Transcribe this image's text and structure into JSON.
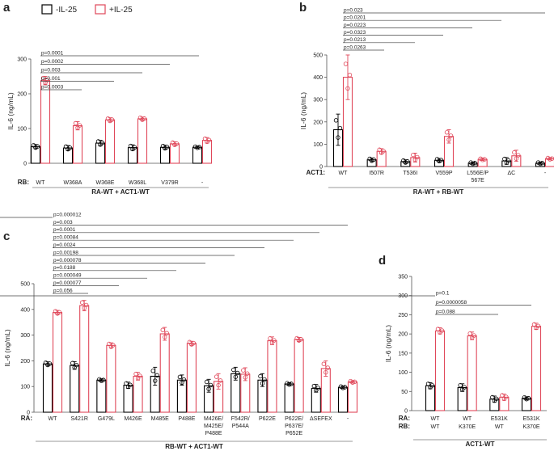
{
  "legend": {
    "items": [
      {
        "label": "-IL-25",
        "color": "#000000"
      },
      {
        "label": "+IL-25",
        "color": "#e0485a"
      }
    ],
    "position": "top-left"
  },
  "chart_data": [
    {
      "panel_label": "a",
      "type": "bar",
      "ylabel": "IL-6 (ng/mL)",
      "ylim": [
        0,
        300
      ],
      "yticks": [
        "0",
        "100",
        "200",
        "300"
      ],
      "row_labels": [
        "RB:"
      ],
      "categories": [
        [
          "WT"
        ],
        [
          "W368A"
        ],
        [
          "W368E"
        ],
        [
          "W368L"
        ],
        [
          "V379R"
        ],
        [
          "-"
        ]
      ],
      "series": [
        {
          "legend_index": 0,
          "values": [
            48,
            44,
            58,
            45,
            46,
            46
          ],
          "errors": [
            6,
            7,
            8,
            8,
            6,
            3
          ]
        },
        {
          "legend_index": 1,
          "values": [
            238,
            108,
            125,
            128,
            56,
            66
          ],
          "errors": [
            12,
            12,
            6,
            5,
            6,
            8
          ]
        }
      ],
      "condition": "RA-WT + ACT1-WT",
      "comparisons": [
        "p=0.0003",
        "p=0.001",
        "p=0.003",
        "p=0.0002",
        "p=0.0001"
      ]
    },
    {
      "panel_label": "b",
      "type": "bar",
      "ylabel": "IL-6 (ng/mL)",
      "ylim": [
        0,
        500
      ],
      "yticks": [
        "0",
        "100",
        "200",
        "300",
        "400",
        "500"
      ],
      "row_labels": [
        "ACT1:"
      ],
      "categories": [
        [
          "WT"
        ],
        [
          "I507R"
        ],
        [
          "T536I"
        ],
        [
          "V559P"
        ],
        [
          "L556E/P",
          "567E"
        ],
        [
          "ΔC"
        ],
        [
          "-"
        ]
      ],
      "series": [
        {
          "legend_index": 0,
          "values": [
            165,
            30,
            22,
            28,
            15,
            25,
            15
          ],
          "errors": [
            70,
            8,
            8,
            8,
            5,
            15,
            5
          ]
        },
        {
          "legend_index": 1,
          "values": [
            400,
            68,
            40,
            135,
            32,
            48,
            35
          ],
          "errors": [
            100,
            12,
            20,
            30,
            5,
            25,
            5
          ]
        }
      ],
      "condition": "RA-WT + RB-WT",
      "comparisons": [
        "p=0.0263",
        "p=0.0213",
        "p=0.0323",
        "p=0.0223",
        "p=0.0201",
        "p=0.023"
      ]
    },
    {
      "panel_label": "c",
      "type": "bar",
      "ylabel": "IL-6 (ng/mL)",
      "ylim": [
        0,
        500
      ],
      "yticks": [
        "0",
        "100",
        "200",
        "300",
        "400",
        "500"
      ],
      "row_labels": [
        "RA:"
      ],
      "categories": [
        [
          "WT"
        ],
        [
          "S421R"
        ],
        [
          "G479L"
        ],
        [
          "M426E"
        ],
        [
          "M485E"
        ],
        [
          "P488E"
        ],
        [
          "M426E/",
          "M425E/",
          "P488E"
        ],
        [
          "F542R/",
          "P544A"
        ],
        [
          "P622E"
        ],
        [
          "P622E/",
          "P637E/",
          "P652E"
        ],
        [
          "ΔSEFEX"
        ],
        [
          "-"
        ]
      ],
      "series": [
        {
          "legend_index": 0,
          "values": [
            188,
            182,
            125,
            105,
            140,
            125,
            103,
            150,
            125,
            110,
            93,
            97
          ],
          "errors": [
            8,
            15,
            5,
            12,
            35,
            20,
            25,
            25,
            25,
            5,
            15,
            5
          ]
        },
        {
          "legend_index": 1,
          "values": [
            388,
            415,
            260,
            140,
            305,
            268,
            120,
            148,
            278,
            283,
            170,
            118
          ],
          "errors": [
            8,
            20,
            10,
            15,
            25,
            8,
            30,
            25,
            15,
            8,
            30,
            5
          ]
        }
      ],
      "condition": "RB-WT + ACT1-WT",
      "comparisons": [
        "p=0.056",
        "p=0.000077",
        "p=0.000049",
        "p=0.0188",
        "p=0.000078",
        "p=0.00198",
        "p=0.0024",
        "p=0.00084",
        "p=0.0001",
        "p=0.003",
        "p=0.000012"
      ]
    },
    {
      "panel_label": "d",
      "type": "bar",
      "ylabel": "IL-6 (ng/mL)",
      "ylim": [
        0,
        350
      ],
      "yticks": [
        "0",
        "50",
        "100",
        "150",
        "200",
        "250",
        "300",
        "350"
      ],
      "row_labels": [
        "RA:",
        "RB:"
      ],
      "categories": [
        [
          "WT",
          "WT"
        ],
        [
          "WT",
          "K370E"
        ],
        [
          "E531K",
          "WT"
        ],
        [
          "E531K",
          "K370E"
        ]
      ],
      "series": [
        {
          "legend_index": 0,
          "values": [
            65,
            60,
            30,
            32
          ],
          "errors": [
            8,
            10,
            8,
            4
          ]
        },
        {
          "legend_index": 1,
          "values": [
            208,
            195,
            35,
            220
          ],
          "errors": [
            8,
            10,
            8,
            8
          ]
        }
      ],
      "condition": "ACT1-WT",
      "comparisons": [
        "p=0.088",
        "p=0.0000058",
        "p=0.1"
      ]
    }
  ]
}
